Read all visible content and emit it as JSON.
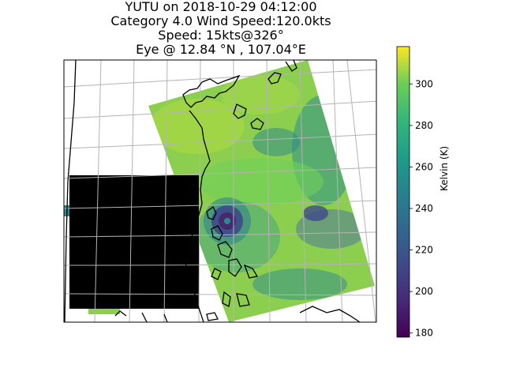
{
  "title": {
    "line1": "YUTU on 2018-10-29 04:12:00",
    "line2": "Category 4.0 Wind Speed:120.0kts",
    "line3": "Speed: 15kts@326°",
    "line4": "Eye @ 12.84 °N , 107.04°E"
  },
  "chart_data": {
    "type": "heatmap",
    "title": "YUTU on 2018-10-29 04:12:00 | Category 4.0 Wind Speed:120.0kts | Speed: 15kts@326° | Eye @ 12.84 °N , 107.04°E",
    "colormap": "viridis",
    "colorbar": {
      "label": "Kelvin (K)",
      "range": [
        178,
        318
      ],
      "ticks": [
        180,
        200,
        220,
        240,
        260,
        280,
        300
      ],
      "tick_labels": [
        "180",
        "200",
        "220",
        "240",
        "260",
        "280",
        "300"
      ]
    },
    "storm_eye": {
      "lat": 12.84,
      "lon": 107.04
    },
    "grid": true,
    "coastlines": true,
    "missing_data_region": "black rectangle west of swath"
  },
  "colors": {
    "land_bg": "#ffffff",
    "missing": "#000000",
    "grid": "#b0b0b0",
    "coast": "#000000"
  }
}
